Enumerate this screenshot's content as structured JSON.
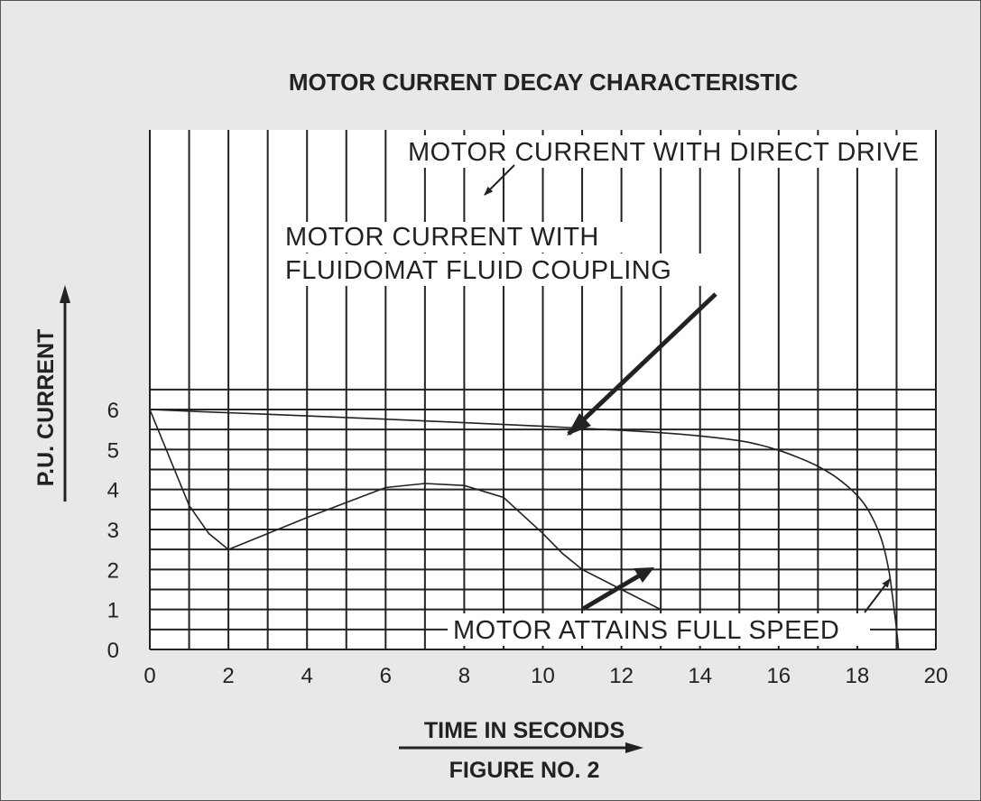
{
  "chart_data": {
    "type": "line",
    "title": "MOTOR CURRENT DECAY CHARACTERISTIC",
    "xlabel": "TIME IN SECONDS",
    "ylabel": "P.U. CURRENT",
    "caption": "FIGURE NO. 2",
    "xlim": [
      0,
      20
    ],
    "ylim": [
      0,
      6.5
    ],
    "grid": true,
    "x_ticks": [
      "0",
      "2",
      "4",
      "6",
      "8",
      "10",
      "12",
      "14",
      "16",
      "18",
      "20"
    ],
    "y_ticks": [
      "0",
      "1",
      "2",
      "3",
      "4",
      "5",
      "6"
    ],
    "series": [
      {
        "id": "direct",
        "x": [
          0,
          2,
          4,
          6,
          8,
          10,
          12,
          13,
          14,
          15,
          15.5,
          16,
          16.5,
          17,
          17.5,
          18,
          18.3,
          18.6,
          18.8,
          18.9,
          19.0,
          19.05
        ],
        "y": [
          6.0,
          5.92,
          5.84,
          5.76,
          5.67,
          5.58,
          5.48,
          5.42,
          5.34,
          5.22,
          5.12,
          4.98,
          4.8,
          4.58,
          4.28,
          3.85,
          3.45,
          2.8,
          2.0,
          1.3,
          0.5,
          0.0
        ]
      },
      {
        "id": "fluidomat",
        "x": [
          0,
          0.5,
          1.0,
          1.5,
          2.0,
          4.0,
          6.0,
          7.0,
          8.0,
          9.0,
          10.0,
          10.5,
          11.0,
          12.0,
          13.0
        ],
        "y": [
          6.0,
          4.8,
          3.6,
          2.9,
          2.5,
          3.3,
          4.05,
          4.15,
          4.1,
          3.8,
          2.9,
          2.4,
          2.0,
          1.5,
          1.0
        ]
      }
    ],
    "annotations": [
      {
        "text": "MOTOR CURRENT WITH DIRECT DRIVE",
        "anchor": "direct"
      },
      {
        "text": "MOTOR CURRENT WITH",
        "anchor": "fluidomat"
      },
      {
        "text": "FLUIDOMAT FLUID COUPLING",
        "anchor": "fluidomat"
      },
      {
        "text": "MOTOR ATTAINS FULL SPEED",
        "anchor": "full-speed"
      }
    ]
  }
}
